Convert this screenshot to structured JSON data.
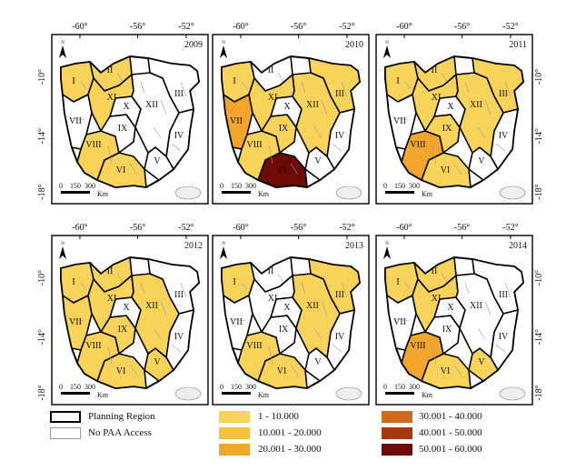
{
  "panels": [
    {
      "year": "2009"
    },
    {
      "year": "2010"
    },
    {
      "year": "2011"
    },
    {
      "year": "2012"
    },
    {
      "year": "2013"
    },
    {
      "year": "2014"
    }
  ],
  "axes": {
    "lon_labels": [
      "-60°",
      "-56°",
      "-52°"
    ],
    "lat_labels": [
      "-10°",
      "-14°",
      "-18°"
    ]
  },
  "north_label": "N",
  "scale_bar": {
    "labels": [
      "0",
      "150",
      "300"
    ],
    "unit": "Km"
  },
  "region_labels": [
    "I",
    "II",
    "III",
    "IV",
    "V",
    "VI",
    "VII",
    "VIII",
    "IX",
    "X",
    "XI",
    "XII"
  ],
  "legend": {
    "planning_region": "Planning Region",
    "no_access": "No PAA Access",
    "classes": [
      {
        "label": "1 - 10.000",
        "color": "#f7d35a"
      },
      {
        "label": "10.001 - 20.000",
        "color": "#f6c040"
      },
      {
        "label": "20.001 - 30.000",
        "color": "#f1a52a"
      },
      {
        "label": "30.001 - 40.000",
        "color": "#cf6a1c"
      },
      {
        "label": "40.001 - 50.000",
        "color": "#a9380f"
      },
      {
        "label": "50.001 - 60.000",
        "color": "#6d0a06"
      }
    ]
  },
  "colors": {
    "fill_light": "#f7d35a",
    "fill_mid": "#f1a52a",
    "fill_dark": "#6d0a06",
    "border": "#000000",
    "muni": "#9a9a9a"
  }
}
